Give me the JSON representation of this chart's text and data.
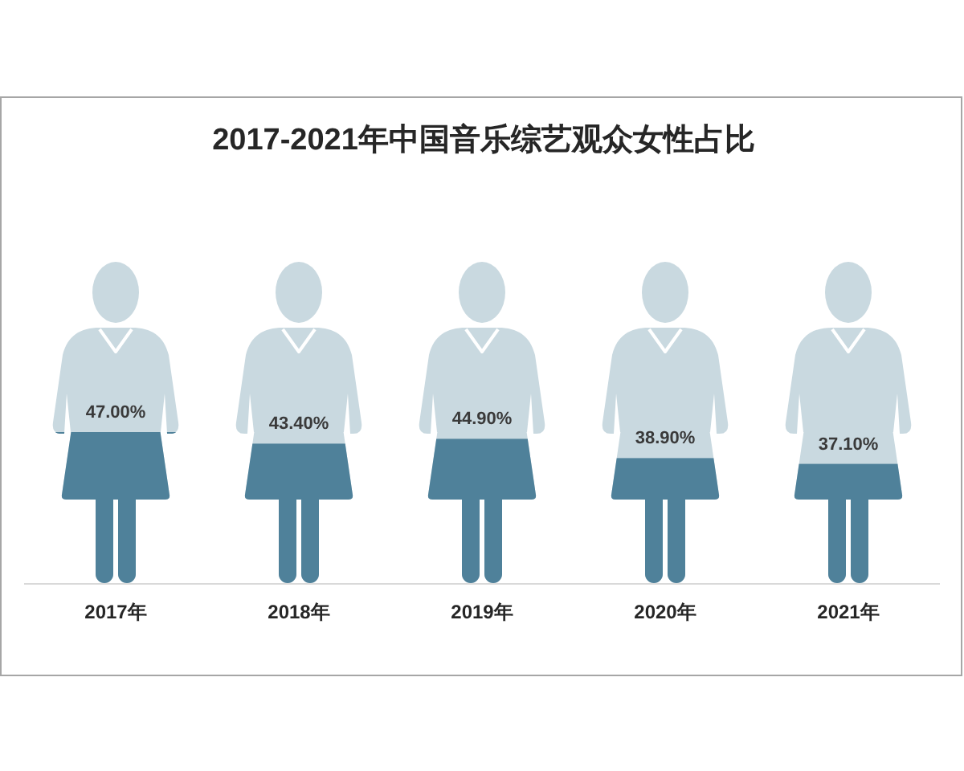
{
  "chart_data": {
    "type": "bar",
    "title": "2017-2021年中国音乐综艺观众女性占比",
    "categories": [
      "2017年",
      "2018年",
      "2019年",
      "2020年",
      "2021年"
    ],
    "values": [
      47,
      43.4,
      44.9,
      38.9,
      37.1
    ],
    "value_labels": [
      "47.00%",
      "43.40%",
      "44.90%",
      "38.90%",
      "37.10%"
    ],
    "color": "#4f819a",
    "tick_labels": "x"
  }
}
